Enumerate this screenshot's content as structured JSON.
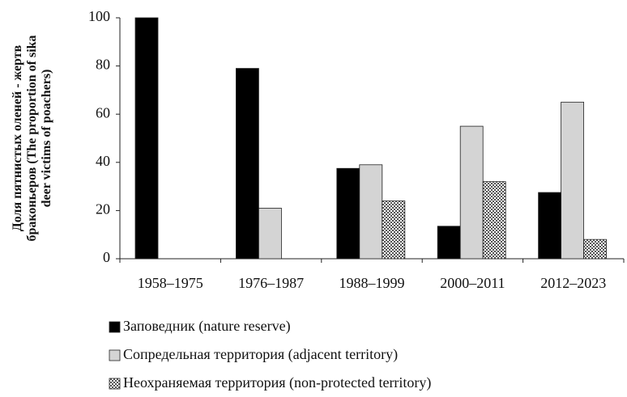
{
  "chart_data": {
    "type": "bar",
    "ylabel": [
      "Доля пятнистых оленей - жертв",
      "браконьеров (The proportion of sika",
      "deer victims of poachers)"
    ],
    "categories": [
      "1958–1975",
      "1976–1987",
      "1988–1999",
      "2000–2011",
      "2012–2023"
    ],
    "series": [
      {
        "name": "Заповедник (nature reserve)",
        "color": "#000000",
        "values": [
          100,
          79,
          37.5,
          13.5,
          27.5
        ]
      },
      {
        "name": "Сопредельная территория (adjacent territory)",
        "color": "#d4d4d4",
        "values": [
          0,
          21,
          39,
          55,
          65
        ]
      },
      {
        "name": "Неохраняемая территория (non-protected territory)",
        "color": "#555555",
        "values": [
          0,
          0,
          24,
          32,
          8
        ]
      }
    ],
    "ylim": [
      0,
      100
    ],
    "yticks": [
      0,
      20,
      40,
      60,
      80,
      100
    ],
    "grid": false
  }
}
